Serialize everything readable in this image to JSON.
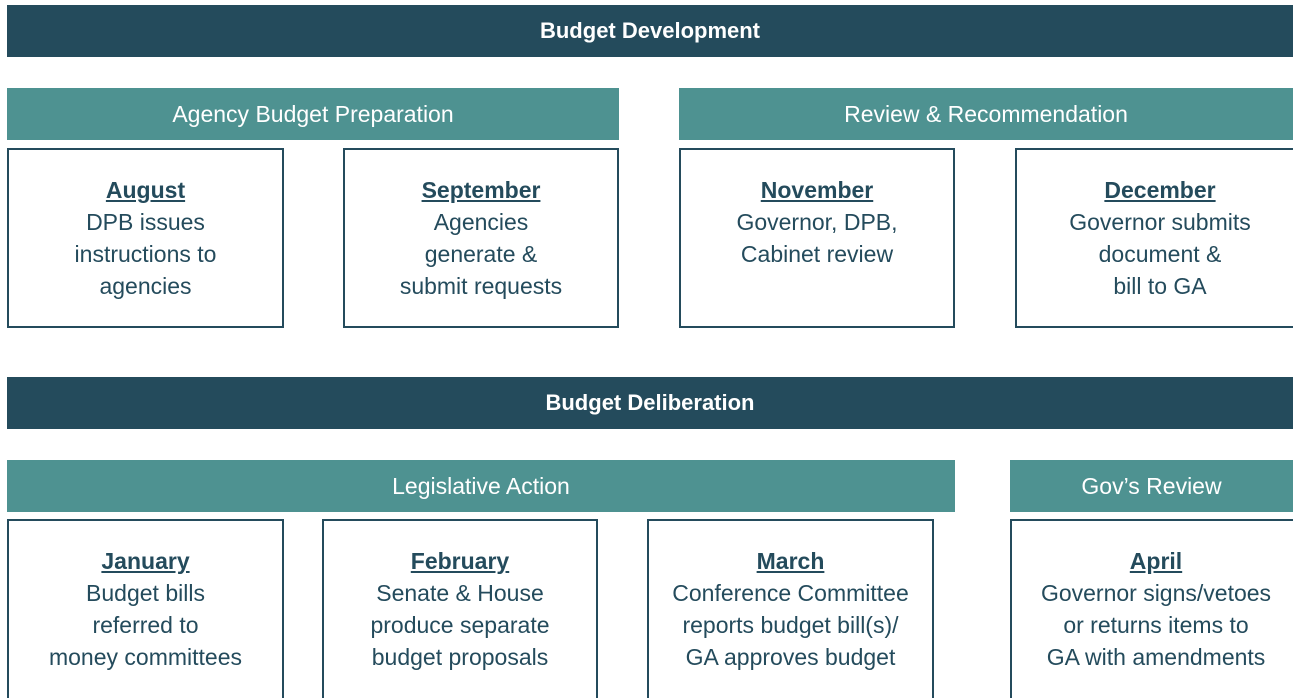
{
  "sections": [
    {
      "title": "Budget Development",
      "groups": [
        {
          "title": "Agency Budget Preparation",
          "items": [
            {
              "month": "August",
              "lines": [
                "DPB issues",
                "instructions to",
                "agencies"
              ]
            },
            {
              "month": "September",
              "lines": [
                "Agencies",
                "generate &",
                "submit requests"
              ]
            }
          ]
        },
        {
          "title": "Review & Recommendation",
          "items": [
            {
              "month": "November",
              "lines": [
                "Governor, DPB,",
                "Cabinet review"
              ]
            },
            {
              "month": "December",
              "lines": [
                "Governor submits",
                "document &",
                "bill to GA"
              ]
            }
          ]
        }
      ]
    },
    {
      "title": "Budget Deliberation",
      "groups": [
        {
          "title": "Legislative Action",
          "items": [
            {
              "month": "January",
              "lines": [
                "Budget bills",
                "referred to",
                "money committees"
              ]
            },
            {
              "month": "February",
              "lines": [
                "Senate & House",
                "produce separate",
                "budget proposals"
              ]
            },
            {
              "month": "March",
              "lines": [
                "Conference Committee",
                "reports budget bill(s)/",
                "GA approves budget"
              ]
            }
          ]
        },
        {
          "title": "Gov’s Review",
          "items": [
            {
              "month": "April",
              "lines": [
                "Governor signs/vetoes",
                "or returns items to",
                "GA with amendments"
              ]
            }
          ]
        }
      ]
    }
  ]
}
